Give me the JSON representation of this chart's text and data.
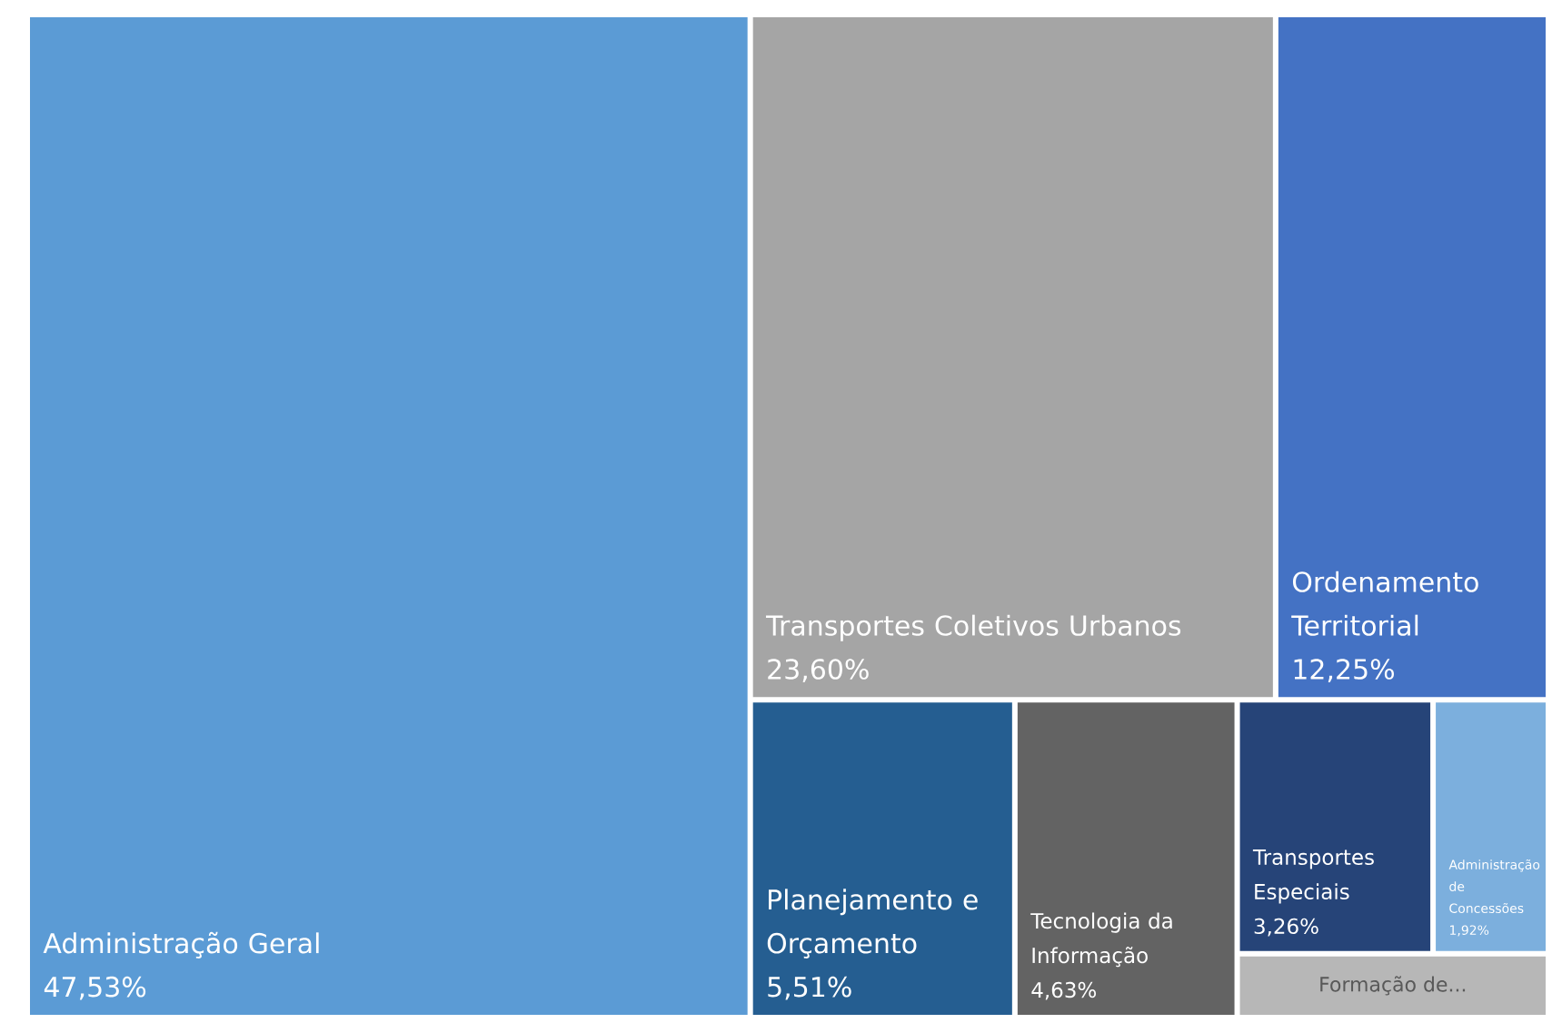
{
  "chart_data": {
    "type": "other",
    "categories": [
      "Administração Geral",
      "Transportes Coletivos Urbanos",
      "Ordenamento Territorial",
      "Planejamento e Orçamento",
      "Tecnologia da Informação",
      "Transportes Especiais",
      "Administração de Concessões",
      "Formação de..."
    ],
    "values": [
      47.53,
      23.6,
      12.25,
      5.51,
      4.63,
      3.26,
      1.92,
      null
    ],
    "value_labels": [
      "47,53%",
      "23,60%",
      "12,25%",
      "5,51%",
      "4,63%",
      "3,26%",
      "1,92%",
      null
    ],
    "colors": [
      "#5b9bd5",
      "#a5a5a5",
      "#4472c4",
      "#255e91",
      "#636363",
      "#264478",
      "#7cafdd",
      "#b7b7b7"
    ]
  }
}
